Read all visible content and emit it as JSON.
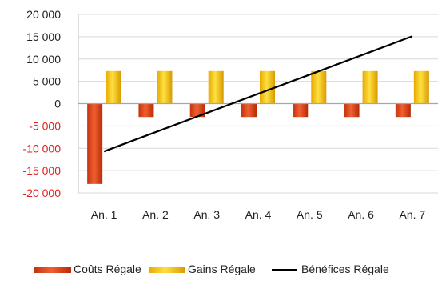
{
  "chart_data": {
    "type": "bar",
    "title": "",
    "xlabel": "",
    "ylabel": "",
    "categories": [
      "An. 1",
      "An. 2",
      "An. 3",
      "An. 4",
      "An. 5",
      "An. 6",
      "An. 7"
    ],
    "ylim": [
      -20000,
      20000
    ],
    "yticks": [
      20000,
      15000,
      10000,
      5000,
      0,
      -5000,
      -10000,
      -15000,
      -20000
    ],
    "ytick_labels": [
      "20 000",
      "15 000",
      "10 000",
      "5 000",
      "0",
      "-5 000",
      "-10 000",
      "-15 000",
      "-20 000"
    ],
    "grid": true,
    "legend_position": "bottom",
    "series": [
      {
        "name": "Coûts Régale",
        "kind": "bar",
        "color": "#e8421a",
        "values": [
          -18000,
          -3000,
          -3000,
          -3000,
          -3000,
          -3000,
          -3000
        ]
      },
      {
        "name": "Gains Régale",
        "kind": "bar",
        "color": "#f5c400",
        "values": [
          7300,
          7300,
          7300,
          7300,
          7300,
          7300,
          7300
        ]
      },
      {
        "name": "Bénéfices Régale",
        "kind": "line",
        "color": "#000000",
        "values": [
          -10700,
          -6400,
          -2100,
          2200,
          6500,
          10800,
          15100
        ]
      }
    ],
    "colors": {
      "negative_tick": "#e02020",
      "positive_tick": "#222222",
      "grid": "#d9d9d9",
      "axis": "#bfbfbf"
    }
  }
}
